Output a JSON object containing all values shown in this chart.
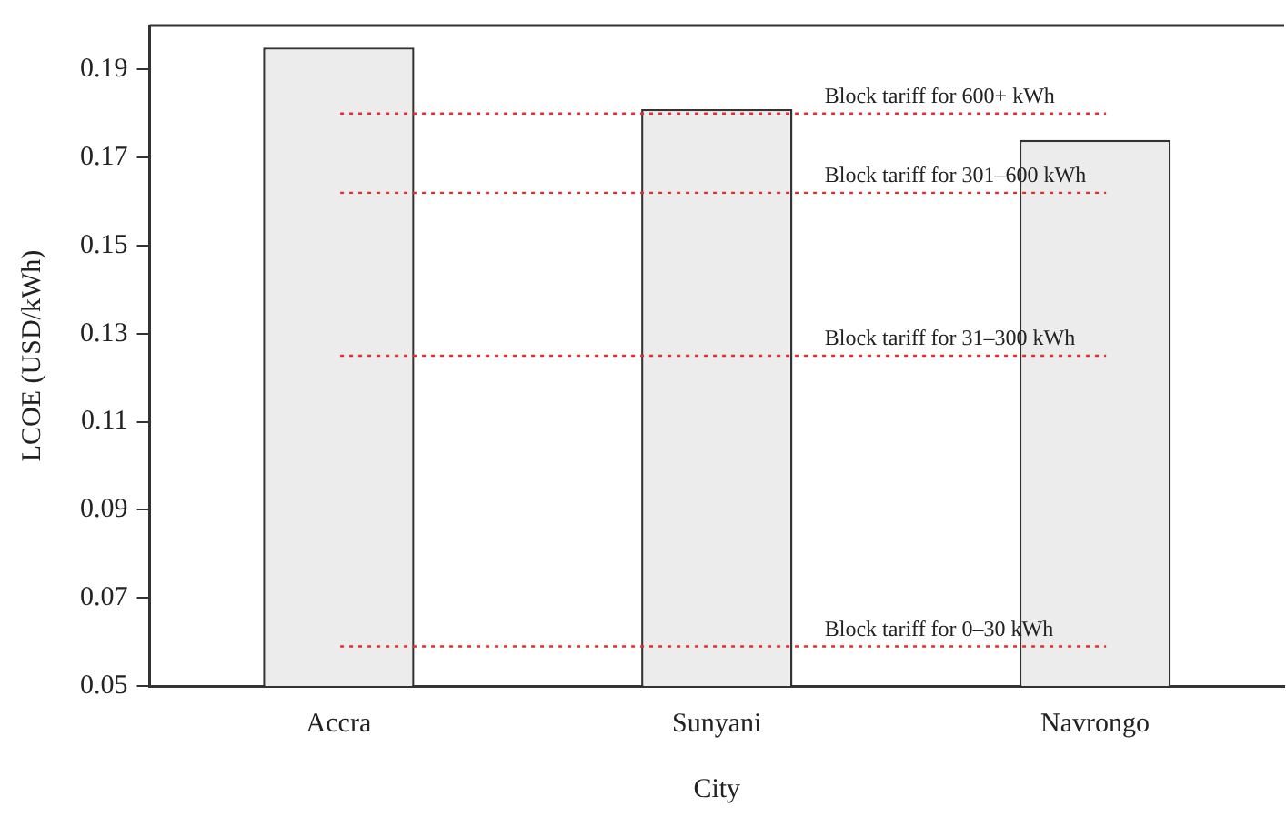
{
  "chart_data": {
    "type": "bar",
    "xlabel": "City",
    "ylabel": "LCOE (USD/kWh)",
    "categories": [
      "Accra",
      "Sunyani",
      "Navrongo"
    ],
    "values": [
      0.195,
      0.181,
      0.174
    ],
    "color": "#ececec",
    "ylim": [
      0.05,
      0.2
    ],
    "yticks": [
      0.05,
      0.07,
      0.09,
      0.11,
      0.13,
      0.15,
      0.17,
      0.19
    ],
    "grid": false,
    "legend": false,
    "ref_lines": [
      {
        "axis": "y",
        "value": 0.18,
        "label": "Block tariff for 600+ kWh",
        "color": "#e0302a",
        "line_style": "dotted"
      },
      {
        "axis": "y",
        "value": 0.162,
        "label": "Block tariff for 301–600 kWh",
        "color": "#e0302a",
        "line_style": "dotted"
      },
      {
        "axis": "y",
        "value": 0.125,
        "label": "Block tariff for 31–300 kWh",
        "color": "#e0302a",
        "line_style": "dotted"
      },
      {
        "axis": "y",
        "value": 0.059,
        "label": "Block tariff for 0–30 kWh",
        "color": "#e0302a",
        "line_style": "dotted"
      }
    ]
  }
}
